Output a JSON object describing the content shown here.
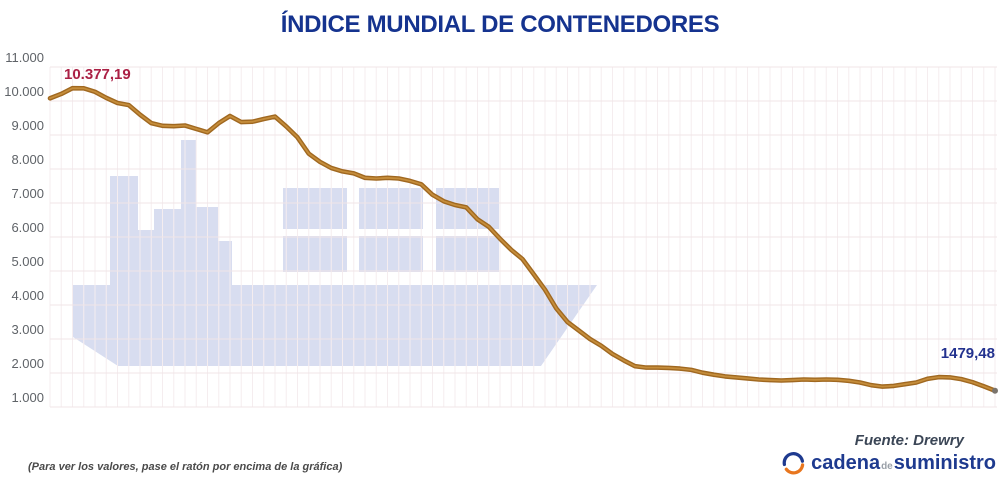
{
  "title": "ÍNDICE MUNDIAL DE CONTENEDORES",
  "footnote": "(Para ver los valores, pase el ratón por encima de la gráfica)",
  "source": "Fuente: Drewry",
  "logo": {
    "icon": "circular-arrows-icon",
    "word1": "cadena",
    "word2": "de",
    "word3": "suministro"
  },
  "colors": {
    "title": "#15338f",
    "line_base": "#a06820",
    "line_highlight": "#c58d3b",
    "watermark": "#d8ddf0",
    "grid_h": "#f0e5e7",
    "grid_v": "#f5edef",
    "tick_text": "#5f6368",
    "peak_label": "#ab2045",
    "end_label": "#23328f",
    "end_marker": "#7a746c",
    "logo_blue": "#1e3a8f",
    "logo_orange": "#e8761e"
  },
  "chart_data": {
    "type": "line",
    "title": "ÍNDICE MUNDIAL DE CONTENEDORES",
    "xlabel": "",
    "ylabel": "",
    "ylim": [
      1000,
      11000
    ],
    "grid": true,
    "legend": "none",
    "watermark": "container-ship",
    "y_axis": {
      "ticks": [
        {
          "value": 1000,
          "label": "1.000"
        },
        {
          "value": 2000,
          "label": "2.000"
        },
        {
          "value": 3000,
          "label": "3.000"
        },
        {
          "value": 4000,
          "label": "4.000"
        },
        {
          "value": 5000,
          "label": "5.000"
        },
        {
          "value": 6000,
          "label": "6.000"
        },
        {
          "value": 7000,
          "label": "7.000"
        },
        {
          "value": 8000,
          "label": "8.000"
        },
        {
          "value": 9000,
          "label": "9.000"
        },
        {
          "value": 10000,
          "label": "10.000"
        },
        {
          "value": 11000,
          "label": "11.000"
        }
      ]
    },
    "values": [
      10080,
      10210,
      10377.19,
      10375,
      10270,
      10090,
      9940,
      9880,
      9600,
      9350,
      9270,
      9260,
      9280,
      9180,
      9080,
      9350,
      9560,
      9380,
      9390,
      9470,
      9540,
      9250,
      8930,
      8450,
      8210,
      8030,
      7930,
      7870,
      7740,
      7720,
      7740,
      7720,
      7650,
      7550,
      7240,
      7050,
      6940,
      6870,
      6520,
      6300,
      5950,
      5620,
      5350,
      4900,
      4450,
      3900,
      3500,
      3250,
      3000,
      2800,
      2560,
      2370,
      2200,
      2160,
      2160,
      2150,
      2130,
      2090,
      2010,
      1950,
      1900,
      1870,
      1840,
      1810,
      1790,
      1780,
      1790,
      1810,
      1800,
      1810,
      1800,
      1770,
      1720,
      1640,
      1600,
      1620,
      1670,
      1720,
      1830,
      1880,
      1870,
      1820,
      1730,
      1610,
      1479.48
    ],
    "annotations": [
      {
        "text": "10.377,19",
        "value": 10377.19,
        "position": "peak"
      },
      {
        "text": "1479,48",
        "value": 1479.48,
        "position": "end"
      }
    ]
  }
}
